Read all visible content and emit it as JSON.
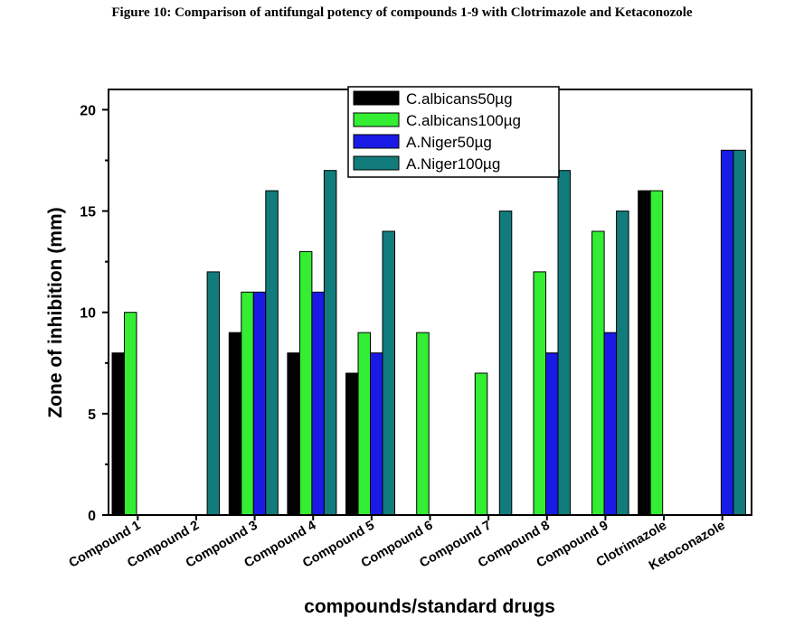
{
  "figure_title": "Figure 10: Comparison of antifungal potency of compounds 1-9 with Clotrimazole and Ketaconozole",
  "chart_data": {
    "type": "bar",
    "xlabel": "compounds/standard drugs",
    "ylabel": "Zone of inhibition (mm)",
    "ylim": [
      0,
      21
    ],
    "yticks": [
      0,
      5,
      10,
      15,
      20
    ],
    "grid": false,
    "legend_position": "top-center",
    "categories": [
      "Compound 1",
      "Compound 2",
      "Compound 3",
      "Compound 4",
      "Compound 5",
      "Compound 6",
      "Compound 7",
      "Compound 8",
      "Compound 9",
      "Clotrimazole",
      "Ketoconazole"
    ],
    "series": [
      {
        "name": "C.albicans50µg",
        "color": "#000000",
        "values": [
          8,
          0,
          9,
          8,
          7,
          0,
          0,
          0,
          0,
          16,
          0
        ]
      },
      {
        "name": "C.albicans100µg",
        "color": "#33ee33",
        "values": [
          10,
          0,
          11,
          13,
          9,
          9,
          7,
          12,
          14,
          16,
          0
        ]
      },
      {
        "name": "A.Niger50µg",
        "color": "#1a1ae6",
        "values": [
          0,
          0,
          11,
          11,
          8,
          0,
          0,
          8,
          9,
          0,
          18
        ]
      },
      {
        "name": "A.Niger100µg",
        "color": "#127c7c",
        "values": [
          0,
          12,
          16,
          17,
          14,
          0,
          15,
          17,
          15,
          0,
          18
        ]
      }
    ]
  }
}
